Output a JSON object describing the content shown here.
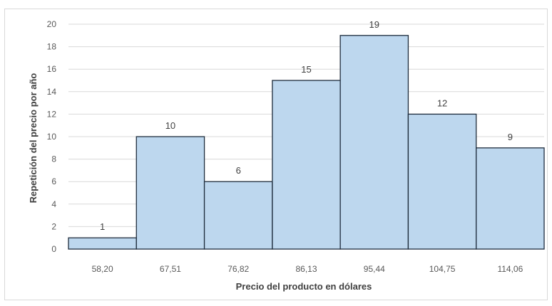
{
  "chart_data": {
    "type": "bar",
    "title": "",
    "xlabel": "Precio del producto en dólares",
    "ylabel": "Repetición del precio por año",
    "categories": [
      "58,20",
      "67,51",
      "76,82",
      "86,13",
      "95,44",
      "104,75",
      "114,06"
    ],
    "values": [
      1,
      10,
      6,
      15,
      19,
      12,
      9
    ],
    "ylim": [
      0,
      20
    ],
    "yticks": [
      0,
      2,
      4,
      6,
      8,
      10,
      12,
      14,
      16,
      18,
      20
    ],
    "grid": true,
    "bar_color": "#bdd7ee",
    "bar_edge_color": "#1f2d3d",
    "data_labels": true
  }
}
